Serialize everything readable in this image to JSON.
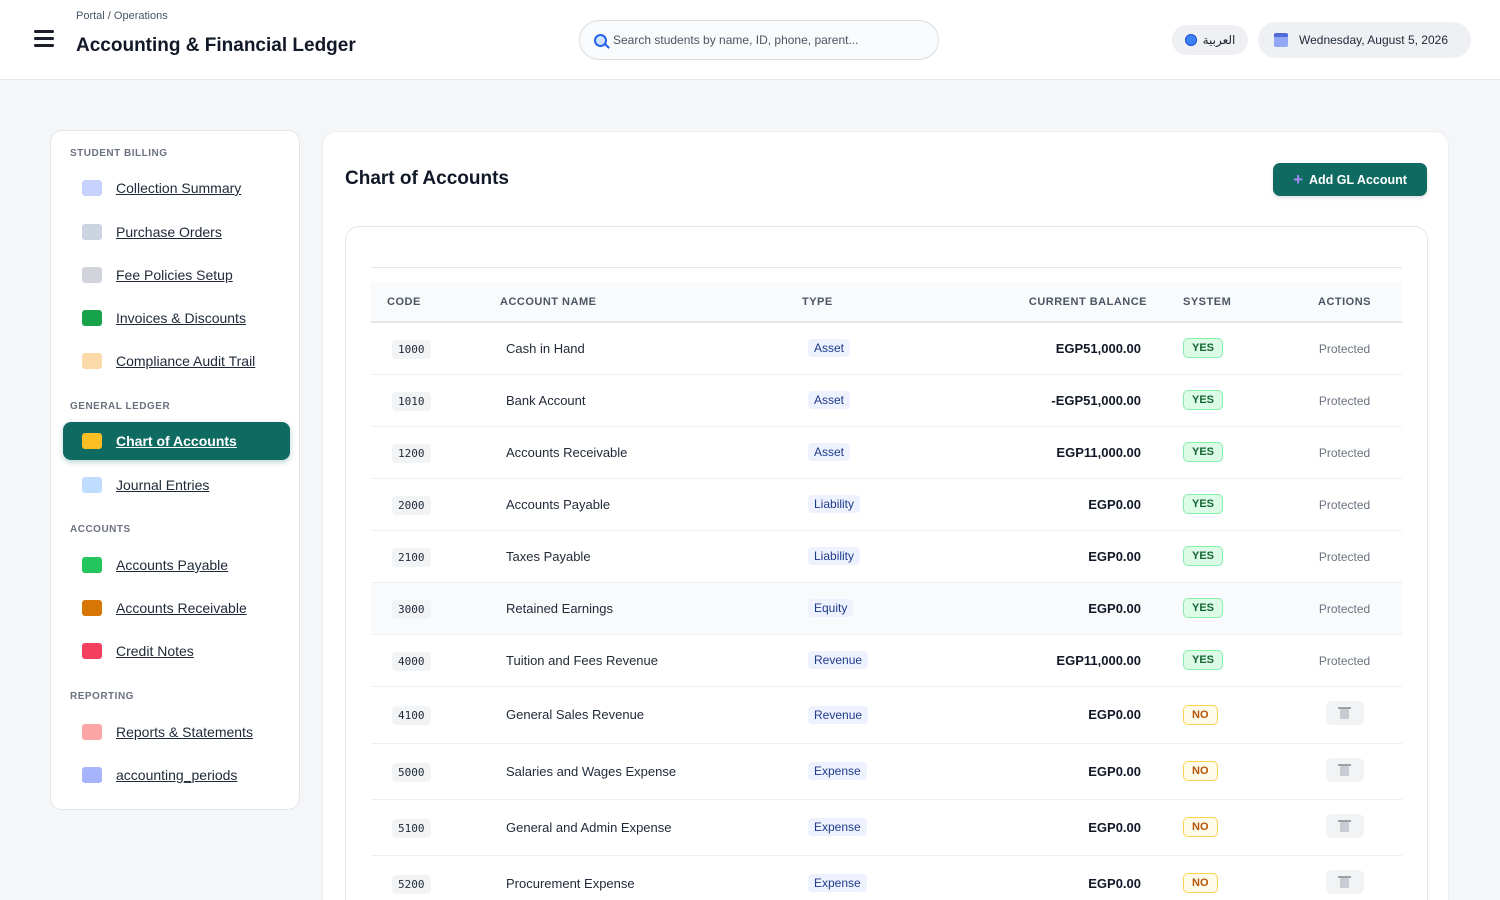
{
  "header": {
    "breadcrumb": "Portal / Operations",
    "title": "Accounting & Financial Ledger",
    "search_placeholder": "Search students by name, ID, phone, parent...",
    "language_label": "العربية",
    "date": "Wednesday, August 5, 2026"
  },
  "sidebar": {
    "sections": [
      {
        "title": "STUDENT BILLING",
        "items": [
          {
            "label": "Collection Summary",
            "icon": "chart-up-icon"
          },
          {
            "label": "Purchase Orders",
            "icon": "cart-icon"
          },
          {
            "label": "Fee Policies Setup",
            "icon": "gear-icon"
          },
          {
            "label": "Invoices & Discounts",
            "icon": "banknote-icon"
          },
          {
            "label": "Compliance Audit Trail",
            "icon": "scroll-icon"
          }
        ]
      },
      {
        "title": "GENERAL LEDGER",
        "items": [
          {
            "label": "Chart of Accounts",
            "icon": "folder-icon",
            "active": true
          },
          {
            "label": "Journal Entries",
            "icon": "book-icon"
          }
        ]
      },
      {
        "title": "ACCOUNTS",
        "items": [
          {
            "label": "Accounts Payable",
            "icon": "money-wings-icon"
          },
          {
            "label": "Accounts Receivable",
            "icon": "money-bag-icon"
          },
          {
            "label": "Credit Notes",
            "icon": "ticket-icon"
          }
        ]
      },
      {
        "title": "REPORTING",
        "items": [
          {
            "label": "Reports & Statements",
            "icon": "chart-down-icon"
          },
          {
            "label": "accounting_periods",
            "icon": "calendar-icon"
          }
        ]
      }
    ]
  },
  "main": {
    "title": "Chart of Accounts",
    "add_button": "Add GL Account",
    "columns": [
      "CODE",
      "ACCOUNT NAME",
      "TYPE",
      "CURRENT BALANCE",
      "SYSTEM",
      "ACTIONS"
    ],
    "rows": [
      {
        "code": "1000",
        "name": "Cash in Hand",
        "type": "Asset",
        "balance": "EGP51,000.00",
        "system": "YES",
        "action": "Protected"
      },
      {
        "code": "1010",
        "name": "Bank Account",
        "type": "Asset",
        "balance": "-EGP51,000.00",
        "system": "YES",
        "action": "Protected"
      },
      {
        "code": "1200",
        "name": "Accounts Receivable",
        "type": "Asset",
        "balance": "EGP11,000.00",
        "system": "YES",
        "action": "Protected"
      },
      {
        "code": "2000",
        "name": "Accounts Payable",
        "type": "Liability",
        "balance": "EGP0.00",
        "system": "YES",
        "action": "Protected"
      },
      {
        "code": "2100",
        "name": "Taxes Payable",
        "type": "Liability",
        "balance": "EGP0.00",
        "system": "YES",
        "action": "Protected"
      },
      {
        "code": "3000",
        "name": "Retained Earnings",
        "type": "Equity",
        "balance": "EGP0.00",
        "system": "YES",
        "action": "Protected",
        "highlight": true
      },
      {
        "code": "4000",
        "name": "Tuition and Fees Revenue",
        "type": "Revenue",
        "balance": "EGP11,000.00",
        "system": "YES",
        "action": "Protected"
      },
      {
        "code": "4100",
        "name": "General Sales Revenue",
        "type": "Revenue",
        "balance": "EGP0.00",
        "system": "NO",
        "action": "delete"
      },
      {
        "code": "5000",
        "name": "Salaries and Wages Expense",
        "type": "Expense",
        "balance": "EGP0.00",
        "system": "NO",
        "action": "delete"
      },
      {
        "code": "5100",
        "name": "General and Admin Expense",
        "type": "Expense",
        "balance": "EGP0.00",
        "system": "NO",
        "action": "delete"
      },
      {
        "code": "5200",
        "name": "Procurement Expense",
        "type": "Expense",
        "balance": "EGP0.00",
        "system": "NO",
        "action": "delete"
      }
    ]
  },
  "colors": {
    "accent": "#0f6b62",
    "yes_bg": "#dcfce7",
    "no_bg": "#fffbeb",
    "icon_colors": {
      "chart-up-icon": "#c7d2fe",
      "cart-icon": "#cbd5e1",
      "gear-icon": "#d1d5db",
      "banknote-icon": "#16a34a",
      "scroll-icon": "#fcd9a8",
      "folder-icon": "#fbbf24",
      "book-icon": "#bfdbfe",
      "money-wings-icon": "#22c55e",
      "money-bag-icon": "#d97706",
      "ticket-icon": "#f43f5e",
      "chart-down-icon": "#fca5a5",
      "calendar-icon": "#a5b4fc"
    }
  }
}
